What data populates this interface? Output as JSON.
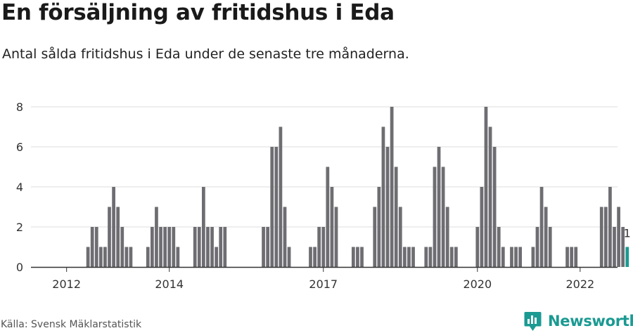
{
  "header": {
    "title": "En försäljning av fritidshus i Eda",
    "subtitle": "Antal sålda fritidshus i Eda under de senaste tre månaderna."
  },
  "footer": {
    "source": "Källa: Svensk Mäklarstatistik",
    "logo_text": "Newsworthy",
    "logo_icon": "bar-chart-bubble-icon"
  },
  "colors": {
    "bar": "#6e6d72",
    "highlight": "#1a9a92",
    "grid": "#dddddd",
    "axis": "#333333",
    "brand": "#1a9a92"
  },
  "chart_data": {
    "type": "bar",
    "x_start": "2011-11",
    "x_end": "2022-03",
    "x_ticks": [
      "2012",
      "2014",
      "2017",
      "2020",
      "2022"
    ],
    "y_ticks": [
      0,
      2,
      4,
      6,
      8
    ],
    "ylim": [
      0,
      8.9
    ],
    "grid": true,
    "values": [
      0,
      0,
      0,
      0,
      0,
      0,
      0,
      1,
      2,
      2,
      1,
      1,
      3,
      4,
      3,
      2,
      1,
      1,
      0,
      0,
      0,
      1,
      2,
      3,
      2,
      2,
      2,
      2,
      1,
      0,
      0,
      0,
      2,
      2,
      4,
      2,
      2,
      1,
      2,
      2,
      0,
      0,
      0,
      0,
      0,
      0,
      0,
      0,
      2,
      2,
      6,
      6,
      7,
      3,
      1,
      0,
      0,
      0,
      0,
      1,
      1,
      2,
      2,
      5,
      4,
      3,
      0,
      0,
      0,
      1,
      1,
      1,
      0,
      0,
      3,
      4,
      7,
      6,
      8,
      5,
      3,
      1,
      1,
      1,
      0,
      0,
      1,
      1,
      5,
      6,
      5,
      3,
      1,
      1,
      0,
      0,
      0,
      0,
      2,
      4,
      8,
      7,
      6,
      2,
      1,
      0,
      1,
      1,
      1,
      0,
      0,
      1,
      2,
      4,
      3,
      2,
      0,
      0,
      0,
      1,
      1,
      1,
      0,
      0,
      0,
      0,
      0,
      3,
      3,
      4,
      2,
      3,
      2,
      1
    ],
    "highlight_last": true,
    "last_label": "1"
  }
}
